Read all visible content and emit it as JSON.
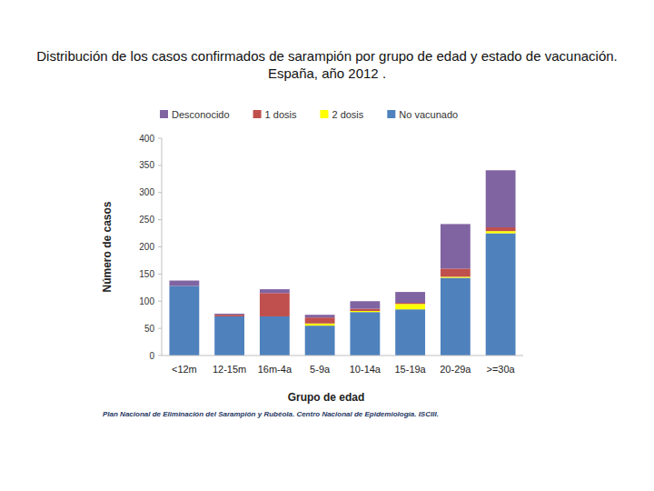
{
  "chart_data": {
    "type": "bar",
    "stacked": true,
    "title": "Distribución de los casos confirmados de sarampión por grupo de edad y estado de vacunación. España, año 2012 .",
    "x_label": "Grupo de edad",
    "y_label": "Número de casos",
    "source": "Plan Nacional de Eliminación del Sarampión y Rubéola. Centro Nacional de Epidemiología. ISCIII.",
    "categories": [
      "<12m",
      "12-15m",
      "16m-4a",
      "5-9a",
      "10-14a",
      "15-19a",
      "20-29a",
      ">=30a"
    ],
    "series": [
      {
        "name": "Desconocido",
        "color": "#8064a2",
        "values": [
          10,
          2,
          7,
          5,
          14,
          20,
          82,
          105
        ]
      },
      {
        "name": "1 dosis",
        "color": "#c0504d",
        "values": [
          0,
          3,
          43,
          11,
          4,
          2,
          15,
          7
        ]
      },
      {
        "name": "2 dosis",
        "color": "#ffff00",
        "values": [
          0,
          0,
          0,
          4,
          2,
          10,
          2,
          4
        ]
      },
      {
        "name": "No vacunado",
        "color": "#4f81bd",
        "values": [
          128,
          72,
          72,
          55,
          80,
          85,
          143,
          225
        ]
      }
    ],
    "ylim": [
      0,
      400
    ],
    "yticks": [
      0,
      50,
      100,
      150,
      200,
      250,
      300,
      350,
      400
    ],
    "grid": false,
    "legend": "top"
  }
}
